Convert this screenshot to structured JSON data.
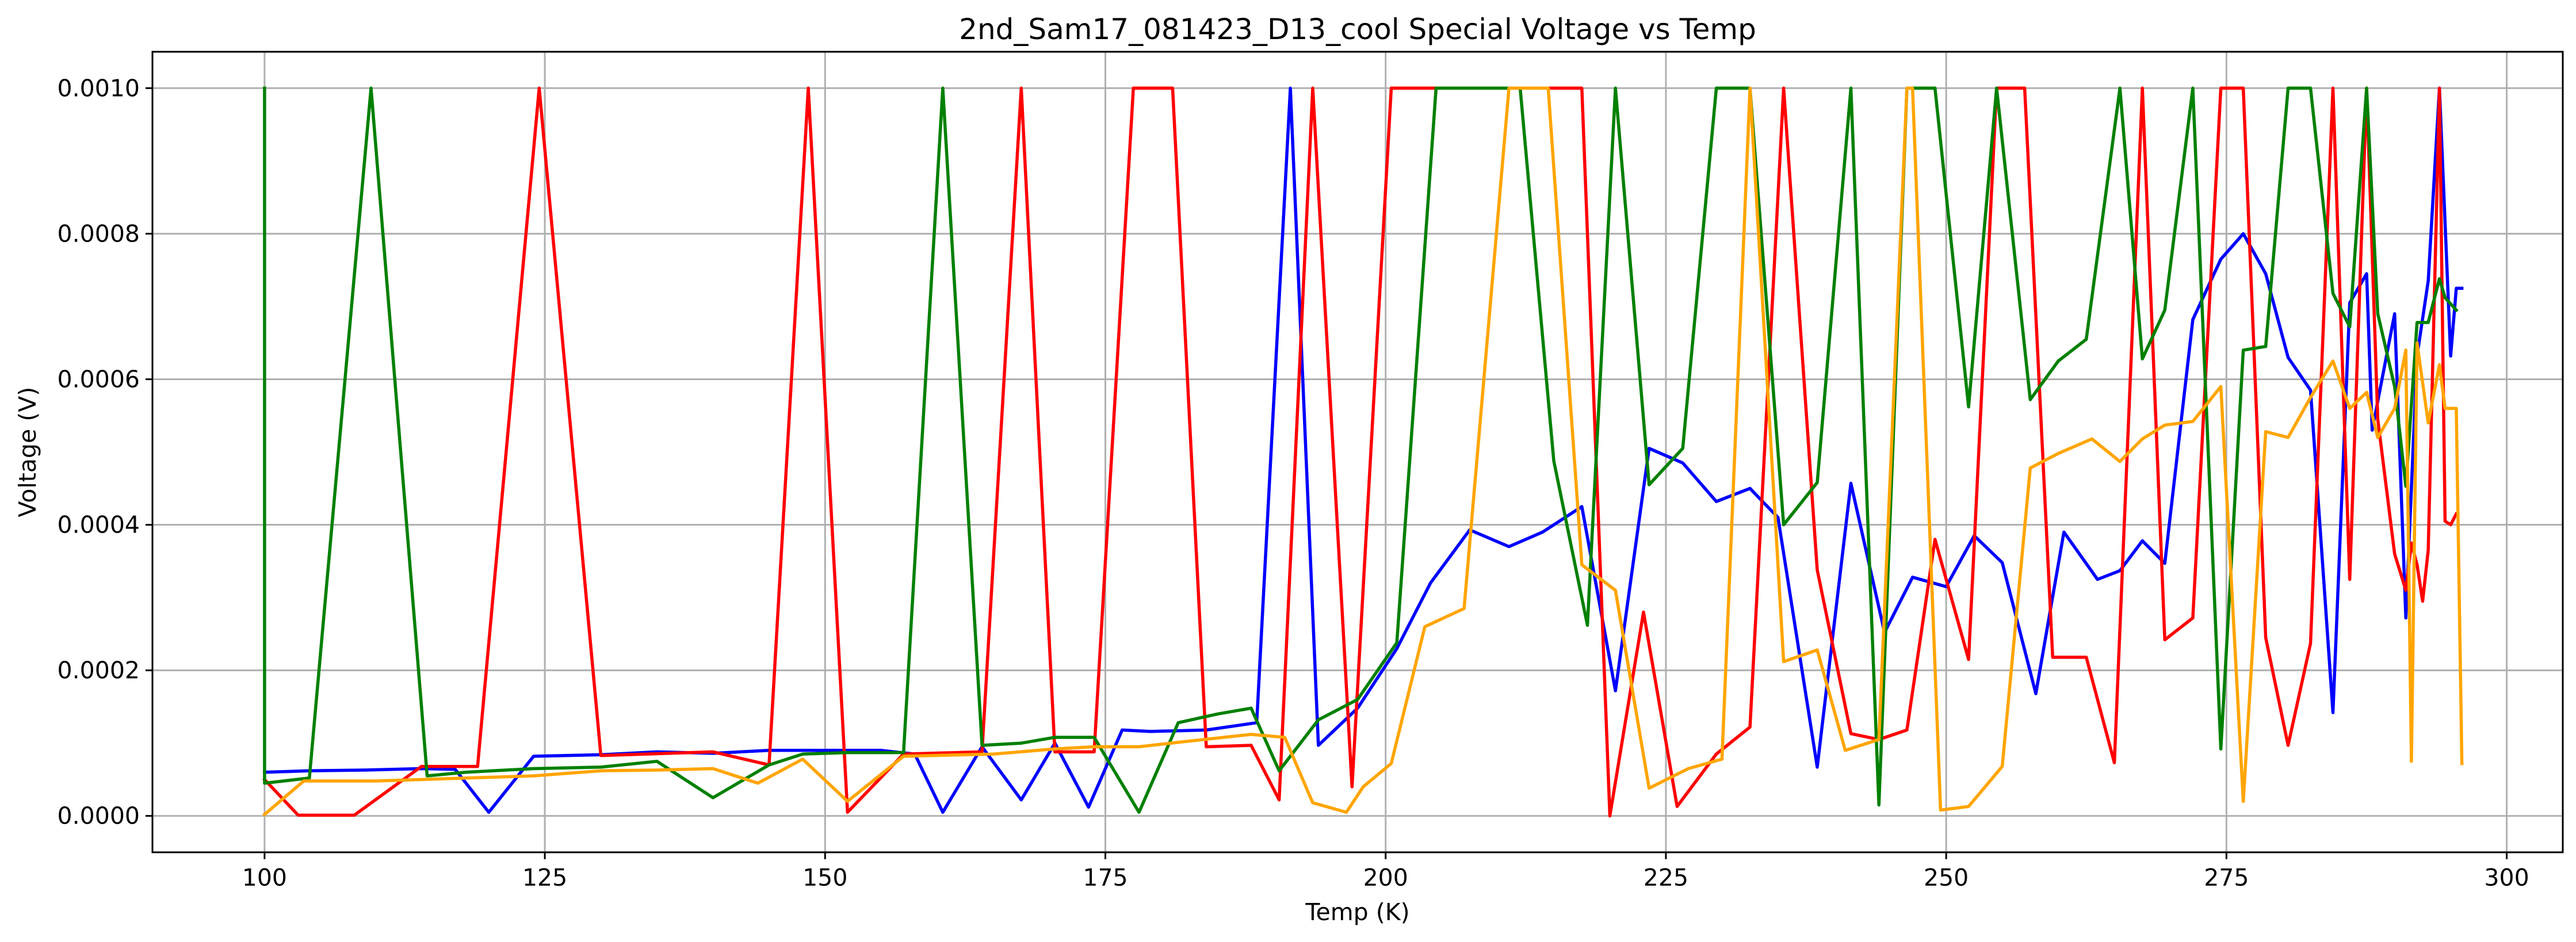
{
  "chart_data": {
    "type": "line",
    "title": "2nd_Sam17_081423_D13_cool Special Voltage vs Temp",
    "xlabel": "Temp (K)",
    "ylabel": "Voltage (V)",
    "xlim": [
      90,
      305
    ],
    "ylim": [
      -5e-05,
      0.00105
    ],
    "xticks": [
      100,
      125,
      150,
      175,
      200,
      225,
      250,
      275,
      300
    ],
    "xtick_labels": [
      "100",
      "125",
      "150",
      "175",
      "200",
      "225",
      "250",
      "275",
      "300"
    ],
    "yticks": [
      0,
      0.0002,
      0.0004,
      0.0006,
      0.0008,
      0.001
    ],
    "ytick_labels": [
      "0.0000",
      "0.0002",
      "0.0004",
      "0.0006",
      "0.0008",
      "0.0010"
    ],
    "grid": true,
    "legend": "none",
    "series": [
      {
        "color": "#0000ff",
        "x": [
          100,
          104,
          109,
          114,
          117,
          120,
          124,
          130,
          135,
          140,
          145,
          150,
          155,
          158,
          160.5,
          164,
          167.5,
          170.5,
          173.5,
          176.5,
          179,
          184,
          188.5,
          191.5,
          194,
          197.5,
          201,
          204,
          207.5,
          211,
          214,
          217.5,
          220.5,
          223.5,
          226.5,
          229.5,
          232.5,
          235,
          238.5,
          241.5,
          244.5,
          247,
          250,
          252.5,
          255,
          258,
          260.5,
          263.5,
          265.5,
          267.5,
          269.5,
          272,
          274.5,
          276.5,
          278.5,
          280.5,
          282.5,
          284.5,
          286,
          287.5,
          288,
          290,
          291,
          292,
          293,
          294,
          295,
          295.5,
          296
        ],
        "y": [
          6e-05,
          6.2e-05,
          6.3e-05,
          6.5e-05,
          6.4e-05,
          5e-06,
          8.2e-05,
          8.4e-05,
          8.8e-05,
          8.6e-05,
          9e-05,
          9e-05,
          9e-05,
          8.5e-05,
          5e-06,
          9.5e-05,
          2.2e-05,
          0.0001,
          1.2e-05,
          0.000118,
          0.000116,
          0.000118,
          0.000128,
          0.001,
          9.7e-05,
          0.000148,
          0.00023,
          0.00032,
          0.000393,
          0.00037,
          0.00039,
          0.000425,
          0.000172,
          0.000505,
          0.000485,
          0.000432,
          0.00045,
          0.00041,
          6.7e-05,
          0.000457,
          0.000252,
          0.000328,
          0.000315,
          0.000385,
          0.000348,
          0.000168,
          0.00039,
          0.000325,
          0.000337,
          0.000378,
          0.000347,
          0.000682,
          0.000765,
          0.0008,
          0.000745,
          0.00063,
          0.000585,
          0.000142,
          0.000705,
          0.000745,
          0.00053,
          0.00069,
          0.000272,
          0.000632,
          0.000735,
          0.001,
          0.000632,
          0.000725,
          0.000725
        ]
      },
      {
        "color": "#ff0000",
        "x": [
          100,
          103,
          108,
          114,
          119,
          124.5,
          130,
          140,
          145,
          148.5,
          152,
          157,
          164,
          167.5,
          170.5,
          174,
          177.5,
          181,
          184,
          188,
          190.5,
          193.5,
          197,
          200.5,
          210,
          211,
          217.5,
          220,
          223,
          226,
          229.5,
          232.5,
          235.5,
          238.5,
          241.5,
          244,
          246.5,
          249,
          252,
          254.5,
          257,
          259.5,
          262.5,
          265,
          267.5,
          269.5,
          272,
          274.5,
          276.5,
          278.5,
          280.5,
          282.5,
          284.5,
          286,
          287.5,
          288.5,
          290,
          291,
          291.5,
          292,
          292.5,
          293,
          294,
          294.5,
          295,
          295.5
        ],
        "y": [
          5e-05,
          1e-06,
          1e-06,
          6.8e-05,
          6.8e-05,
          0.001,
          8.3e-05,
          8.8e-05,
          7e-05,
          0.001,
          5e-06,
          8.5e-05,
          8.8e-05,
          0.001,
          8.8e-05,
          8.8e-05,
          0.001,
          0.001,
          9.5e-05,
          9.7e-05,
          2.2e-05,
          0.001,
          4e-05,
          0.001,
          0.001,
          0.001,
          0.001,
          0.0,
          0.00028,
          1.3e-05,
          8.5e-05,
          0.000122,
          0.001,
          0.000338,
          0.000113,
          0.000105,
          0.000118,
          0.00038,
          0.000215,
          0.001,
          0.001,
          0.000218,
          0.000218,
          7.3e-05,
          0.001,
          0.000242,
          0.000272,
          0.001,
          0.001,
          0.000245,
          9.7e-05,
          0.000237,
          0.001,
          0.000325,
          0.001,
          0.000545,
          0.00036,
          0.00031,
          0.000375,
          0.000345,
          0.000295,
          0.000365,
          0.001,
          0.000405,
          0.0004,
          0.000415
        ]
      },
      {
        "color": "#008000",
        "x": [
          100,
          100,
          104,
          109.5,
          114.5,
          118,
          124,
          130,
          135,
          140,
          145,
          148,
          152,
          157,
          160.5,
          164,
          167.5,
          170.5,
          174,
          178,
          181.5,
          185,
          188,
          190.5,
          194,
          197.5,
          201,
          204.5,
          211,
          212,
          215,
          218,
          220.5,
          223.5,
          226.5,
          229.5,
          232.5,
          235.5,
          238.5,
          241.5,
          244,
          246.5,
          249,
          252,
          254.5,
          257.5,
          260,
          262.5,
          265.5,
          267.5,
          269.5,
          272,
          274.5,
          276.5,
          278.5,
          280.5,
          282.5,
          284.5,
          286,
          287.5,
          288.5,
          290,
          291,
          292,
          293,
          294,
          294.5,
          295.5
        ],
        "y": [
          0.001,
          4.5e-05,
          5.2e-05,
          0.001,
          5.5e-05,
          6e-05,
          6.5e-05,
          6.7e-05,
          7.5e-05,
          2.5e-05,
          7e-05,
          8.5e-05,
          8.7e-05,
          8.7e-05,
          0.001,
          9.7e-05,
          0.0001,
          0.000108,
          0.000108,
          5e-06,
          0.000128,
          0.00014,
          0.000148,
          6.2e-05,
          0.000132,
          0.00016,
          0.000238,
          0.001,
          0.001,
          0.001,
          0.000488,
          0.000262,
          0.001,
          0.000455,
          0.000505,
          0.001,
          0.001,
          0.0004,
          0.000458,
          0.001,
          1.5e-05,
          0.001,
          0.001,
          0.000562,
          0.001,
          0.000572,
          0.000625,
          0.000655,
          0.001,
          0.000628,
          0.000695,
          0.001,
          9.2e-05,
          0.00064,
          0.000645,
          0.001,
          0.001,
          0.000718,
          0.000672,
          0.001,
          0.00069,
          0.00059,
          0.000453,
          0.000678,
          0.000678,
          0.000738,
          0.000712,
          0.000695
        ]
      },
      {
        "color": "#ffa500",
        "x": [
          100,
          103.5,
          110,
          118,
          124,
          130,
          135,
          140,
          144,
          148,
          152,
          157,
          165,
          170.5,
          174,
          178,
          182,
          188,
          191,
          193.5,
          196.5,
          198,
          200.5,
          203.5,
          207,
          211,
          213.5,
          214.5,
          217.5,
          220.5,
          223.5,
          227,
          230,
          232.5,
          235.5,
          238.5,
          241,
          244,
          246.5,
          247,
          249.5,
          252,
          255,
          257.5,
          260,
          263,
          265.5,
          267.5,
          269.5,
          272,
          274.5,
          276.5,
          278.5,
          280.5,
          282.5,
          284.5,
          286,
          287.5,
          288.5,
          290,
          291,
          291.5,
          292,
          293,
          294,
          294.5,
          295.5,
          296
        ],
        "y": [
          2e-06,
          4.8e-05,
          4.8e-05,
          5.2e-05,
          5.5e-05,
          6.2e-05,
          6.3e-05,
          6.5e-05,
          4.5e-05,
          7.8e-05,
          2e-05,
          8.2e-05,
          8.5e-05,
          9.2e-05,
          9.5e-05,
          9.5e-05,
          0.000102,
          0.000112,
          0.000108,
          1.8e-05,
          5e-06,
          4e-05,
          7.2e-05,
          0.00026,
          0.000285,
          0.001,
          0.001,
          0.001,
          0.000345,
          0.00031,
          3.8e-05,
          6.5e-05,
          7.8e-05,
          0.001,
          0.000212,
          0.000228,
          9e-05,
          0.000105,
          0.001,
          0.001,
          8e-06,
          1.3e-05,
          6.8e-05,
          0.000478,
          0.000498,
          0.000518,
          0.000487,
          0.000518,
          0.000537,
          0.000542,
          0.00059,
          2e-05,
          0.000528,
          0.00052,
          0.000575,
          0.000625,
          0.00056,
          0.000582,
          0.00052,
          0.00056,
          0.00064,
          7.5e-05,
          0.00065,
          0.00054,
          0.00062,
          0.00056,
          0.00056,
          7.2e-05
        ]
      }
    ]
  }
}
